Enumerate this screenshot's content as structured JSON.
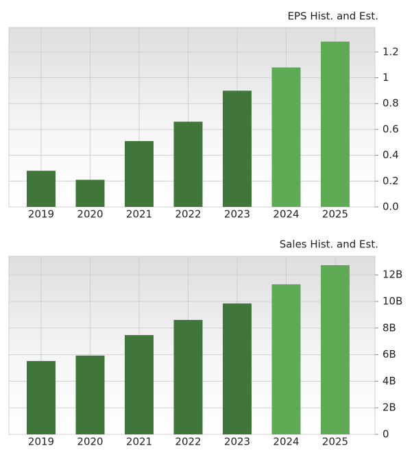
{
  "chart_data": [
    {
      "type": "bar",
      "title": "EPS Hist. and Est.",
      "categories": [
        "2019",
        "2020",
        "2021",
        "2022",
        "2023",
        "2024",
        "2025"
      ],
      "values": [
        0.28,
        0.21,
        0.51,
        0.66,
        0.9,
        1.08,
        1.28
      ],
      "colors": [
        "#41763a",
        "#41763a",
        "#41763a",
        "#41763a",
        "#41763a",
        "#5eaa55",
        "#5eaa55"
      ],
      "ylim": [
        0,
        1.39
      ],
      "yticks": [
        {
          "value": 0,
          "label": "0.0"
        },
        0.2,
        0.4,
        0.6,
        0.8,
        1,
        1.2
      ],
      "grid": true
    },
    {
      "type": "bar",
      "title": "Sales Hist. and Est.",
      "categories": [
        "2019",
        "2020",
        "2021",
        "2022",
        "2023",
        "2024",
        "2025"
      ],
      "values": [
        5520000000,
        5930000000,
        7470000000,
        8610000000,
        9850000000,
        11290000000,
        12730000000
      ],
      "colors": [
        "#41763a",
        "#41763a",
        "#41763a",
        "#41763a",
        "#41763a",
        "#5eaa55",
        "#5eaa55"
      ],
      "ylim": [
        0,
        13400000000
      ],
      "yticks": [
        0,
        {
          "value": 2000000000,
          "label": "2B"
        },
        {
          "value": 4000000000,
          "label": "4B"
        },
        {
          "value": 6000000000,
          "label": "6B"
        },
        {
          "value": 8000000000,
          "label": "8B"
        },
        {
          "value": 10000000000,
          "label": "10B"
        },
        {
          "value": 12000000000,
          "label": "12B"
        }
      ],
      "grid": true
    }
  ]
}
